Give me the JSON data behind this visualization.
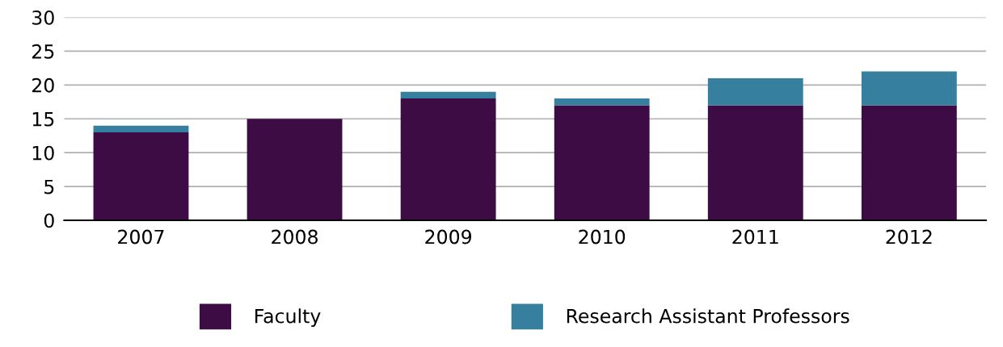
{
  "chart_data": {
    "type": "bar",
    "stacked": true,
    "categories": [
      "2007",
      "2008",
      "2009",
      "2010",
      "2011",
      "2012"
    ],
    "series": [
      {
        "name": "Faculty",
        "color": "#3d0c45",
        "values": [
          13,
          15,
          18,
          17,
          17,
          17
        ]
      },
      {
        "name": "Research Assistant Professors",
        "color": "#377f9f",
        "values": [
          1,
          0,
          1,
          1,
          4,
          5
        ]
      }
    ],
    "ylim": [
      0,
      30
    ],
    "yticks": [
      0,
      5,
      10,
      15,
      20,
      25,
      30
    ],
    "grid": "y",
    "legend": "bottom"
  }
}
